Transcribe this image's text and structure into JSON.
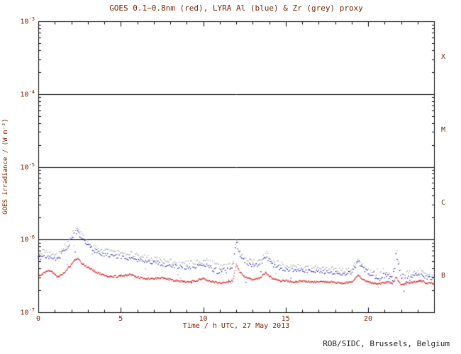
{
  "footer": {
    "credit": "ROB/SIDC, Brussels, Belgium"
  },
  "chart_data": {
    "type": "line",
    "title": "GOES 0.1−0.8nm (red), LYRA Al (blue) & Zr (grey) proxy",
    "xlabel": "Time / h UTC, 27 May 2013",
    "ylabel": "GOES irradiance / (W m⁻²)",
    "xlim": [
      0,
      24
    ],
    "ylim_log10": [
      -7,
      -3
    ],
    "x_major_ticks": [
      0,
      5,
      10,
      15,
      20
    ],
    "y_ticks_exp": [
      -3,
      -4,
      -5,
      -6,
      -7
    ],
    "threshold_lines": [
      0.0001,
      1e-05,
      1e-06
    ],
    "flare_classes": [
      {
        "label": "X",
        "center_exp": -3.5
      },
      {
        "label": "M",
        "center_exp": -4.5
      },
      {
        "label": "C",
        "center_exp": -5.5
      },
      {
        "label": "B",
        "center_exp": -6.5
      }
    ],
    "colors": {
      "frame": "#000000",
      "annotation": "#7b2504",
      "goes": "#cc0000",
      "lyra_al": "#1111bb",
      "lyra_zr": "#9a9a9a"
    },
    "unit": "W m^-2",
    "value_scale": 1e-07,
    "x": [
      0,
      0.3,
      0.6,
      0.9,
      1.2,
      1.5,
      1.8,
      2.0,
      2.2,
      2.4,
      2.6,
      2.9,
      3.2,
      3.6,
      4.0,
      4.4,
      4.8,
      5.2,
      5.6,
      6.0,
      6.5,
      7.0,
      7.5,
      8.0,
      8.5,
      9.0,
      9.5,
      10.0,
      10.3,
      10.7,
      11.0,
      11.4,
      11.8,
      12.0,
      12.2,
      12.5,
      13.0,
      13.4,
      13.8,
      14.2,
      14.6,
      15.0,
      15.5,
      16.0,
      16.5,
      17.0,
      17.5,
      18.0,
      18.5,
      19.0,
      19.4,
      19.7,
      20.0,
      20.4,
      20.8,
      21.2,
      21.5,
      21.7,
      22.0,
      22.4,
      22.8,
      23.2,
      23.6,
      24.0
    ],
    "series": [
      {
        "name": "GOES 0.1-0.8nm",
        "color_key": "goes",
        "values": [
          3.2,
          3.4,
          3.8,
          3.5,
          3.0,
          3.4,
          4.0,
          4.5,
          5.2,
          5.5,
          4.8,
          4.3,
          3.9,
          3.5,
          3.2,
          3.1,
          3.1,
          3.2,
          3.3,
          3.0,
          2.9,
          2.9,
          3.0,
          2.8,
          2.7,
          2.6,
          2.7,
          2.9,
          2.7,
          2.6,
          2.5,
          2.6,
          2.7,
          4.5,
          3.6,
          3.1,
          2.8,
          2.9,
          3.5,
          2.9,
          2.7,
          2.7,
          2.6,
          2.7,
          2.6,
          2.6,
          2.6,
          2.6,
          2.5,
          2.6,
          3.2,
          2.8,
          2.6,
          2.5,
          2.5,
          2.6,
          2.5,
          3.0,
          2.4,
          2.5,
          2.6,
          2.7,
          2.5,
          2.5
        ]
      },
      {
        "name": "LYRA Al proxy",
        "color_key": "lyra_al",
        "values": [
          5.4,
          6.0,
          5.8,
          5.6,
          5.4,
          6.6,
          8.0,
          9.8,
          12.5,
          13.0,
          10.5,
          8.8,
          7.6,
          6.7,
          6.2,
          6.0,
          5.8,
          5.6,
          5.5,
          5.2,
          5.0,
          4.8,
          4.6,
          4.4,
          4.2,
          4.1,
          4.2,
          4.4,
          4.1,
          3.9,
          3.6,
          3.7,
          4.0,
          9.5,
          6.3,
          5.0,
          4.3,
          4.5,
          5.8,
          4.5,
          4.1,
          3.9,
          3.8,
          3.7,
          3.6,
          3.6,
          3.5,
          3.5,
          3.4,
          3.5,
          5.0,
          4.0,
          3.5,
          3.1,
          3.0,
          3.3,
          3.0,
          6.0,
          2.9,
          3.0,
          3.2,
          3.5,
          2.9,
          2.9
        ]
      },
      {
        "name": "LYRA Zr proxy",
        "color_key": "lyra_zr",
        "values": [
          6.0,
          6.8,
          6.5,
          6.3,
          6.0,
          7.5,
          9.0,
          11.0,
          14.0,
          14.5,
          12.0,
          10.0,
          8.5,
          7.5,
          7.0,
          6.8,
          6.6,
          6.4,
          6.3,
          6.0,
          5.7,
          5.5,
          5.2,
          5.0,
          4.8,
          4.7,
          4.8,
          5.0,
          4.7,
          4.4,
          4.0,
          4.1,
          4.5,
          10.5,
          7.0,
          5.5,
          4.8,
          5.0,
          6.5,
          5.0,
          4.6,
          4.4,
          4.3,
          4.2,
          4.1,
          4.0,
          4.0,
          3.9,
          3.8,
          3.9,
          5.3,
          4.4,
          3.8,
          3.4,
          3.3,
          3.6,
          3.2,
          7.5,
          3.1,
          3.2,
          3.4,
          3.8,
          3.1,
          3.0
        ]
      }
    ]
  }
}
